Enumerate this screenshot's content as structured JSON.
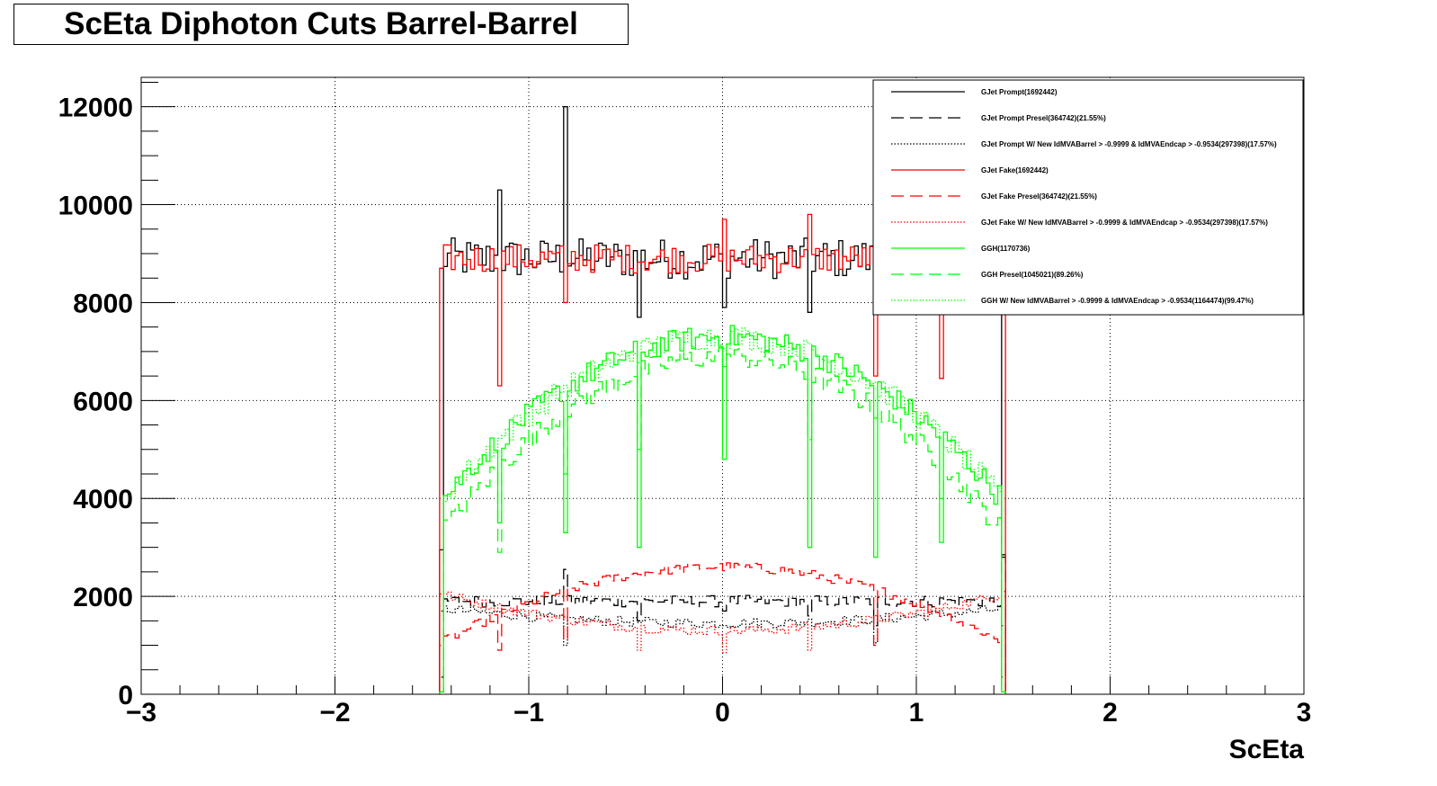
{
  "chart_data": {
    "type": "step-histogram",
    "title": "ScEta Diphoton Cuts Barrel-Barrel",
    "xlabel": "ScEta",
    "ylabel": "",
    "xlim": [
      -3,
      3
    ],
    "ylim": [
      0,
      12600
    ],
    "grid": true,
    "legend_position": "top-right",
    "x_ticks": [
      "−3",
      "−2",
      "−1",
      "0",
      "1",
      "2",
      "3"
    ],
    "y_ticks": [
      "0",
      "2000",
      "4000",
      "6000",
      "8000",
      "10000",
      "12000"
    ],
    "x_tick_values": [
      -3,
      -2,
      -1,
      0,
      1,
      2,
      3
    ],
    "y_tick_values": [
      0,
      2000,
      4000,
      6000,
      8000,
      10000,
      12000
    ],
    "bin_range": [
      -1.46,
      1.46
    ],
    "bin_count": 146,
    "colors": {
      "black": "#000000",
      "red": "#ff0000",
      "green": "#00ff00"
    },
    "series": [
      {
        "name": "GJet Prompt(1692442)",
        "color": "#000000",
        "style": "solid",
        "profile": {
          "type": "flat",
          "level": 8900,
          "amp": 420
        },
        "edges": [
          2950,
          2800
        ],
        "spikes": [
          [
            -1.15,
            10300
          ],
          [
            -0.8,
            12000
          ],
          [
            -0.44,
            7700
          ],
          [
            0,
            7900
          ],
          [
            0.44,
            7800
          ],
          [
            0.78,
            8300
          ]
        ]
      },
      {
        "name": "GJet Prompt Presel(364742)(21.55%)",
        "color": "#000000",
        "style": "dashed",
        "profile": {
          "type": "flat",
          "level": 1900,
          "amp": 120
        },
        "edges": [
          350,
          2850
        ],
        "spikes": [
          [
            -0.8,
            2550
          ],
          [
            -0.44,
            1500
          ],
          [
            0,
            1700
          ],
          [
            0.44,
            1600
          ],
          [
            0.78,
            1400
          ]
        ]
      },
      {
        "name": "GJet Prompt W/ New IdMVABarrel > -0.9999 & IdMVAEndcap > -0.9534(297398)(17.57%)",
        "color": "#000000",
        "style": "dotted",
        "profile": {
          "type": "bowl",
          "level": 1450,
          "edge": 1750,
          "amp": 100
        },
        "edges": [
          1700,
          1400
        ],
        "spikes": [
          [
            -0.8,
            1000
          ],
          [
            0.78,
            1050
          ]
        ]
      },
      {
        "name": "GJet Fake(1692442)",
        "color": "#ff0000",
        "style": "solid",
        "profile": {
          "type": "flat",
          "level": 8900,
          "amp": 300
        },
        "edges": [
          8700,
          8800
        ],
        "spikes": [
          [
            -1.15,
            6300
          ],
          [
            -0.8,
            8000
          ],
          [
            0,
            9700
          ],
          [
            0.44,
            9800
          ],
          [
            0.78,
            6500
          ],
          [
            1.12,
            6450
          ],
          [
            1.44,
            8600
          ]
        ]
      },
      {
        "name": "GJet Fake Presel(364742)(21.55%)",
        "color": "#ff0000",
        "style": "dashed",
        "profile": {
          "type": "arch",
          "peak": 2600,
          "edge": 1050,
          "amp": 100
        },
        "edges": [
          1000,
          350
        ],
        "spikes": [
          [
            -1.15,
            900
          ],
          [
            -0.8,
            1100
          ],
          [
            0.78,
            1000
          ]
        ]
      },
      {
        "name": "GJet Fake W/ New IdMVABarrel > -0.9999 & IdMVAEndcap > -0.9534(297398)(17.57%)",
        "color": "#ff0000",
        "style": "dotted",
        "profile": {
          "type": "bowl",
          "level": 1300,
          "edge": 2050,
          "amp": 100
        },
        "edges": [
          2050,
          2100
        ],
        "spikes": [
          [
            -0.44,
            900
          ],
          [
            0,
            850
          ],
          [
            0.44,
            900
          ]
        ]
      },
      {
        "name": "GGH(1170736)",
        "color": "#00ff00",
        "style": "solid",
        "profile": {
          "type": "arch",
          "peak": 7300,
          "edge": 3950,
          "amp": 250
        },
        "edges": [
          50,
          50
        ],
        "spikes": [
          [
            -1.15,
            3500
          ],
          [
            -0.8,
            3300
          ],
          [
            -0.44,
            3000
          ],
          [
            0,
            4800
          ],
          [
            0.44,
            3000
          ],
          [
            0.78,
            2800
          ],
          [
            1.12,
            3100
          ]
        ]
      },
      {
        "name": "GGH Presel(1045021)(89.26%)",
        "color": "#00ff00",
        "style": "dashed",
        "profile": {
          "type": "arch",
          "peak": 6900,
          "edge": 3300,
          "amp": 230
        },
        "edges": [
          50,
          50
        ],
        "spikes": [
          [
            -1.15,
            2900
          ],
          [
            -0.8,
            4500
          ],
          [
            -0.44,
            5000
          ],
          [
            0.44,
            5200
          ],
          [
            1.12,
            4000
          ]
        ]
      },
      {
        "name": "GGH W/ New IdMVABarrel > -0.9999 & IdMVAEndcap > -0.9534(1164474)(99.47%)",
        "color": "#00ff00",
        "style": "dotted",
        "profile": {
          "type": "arch",
          "peak": 7300,
          "edge": 3950,
          "amp": 250
        },
        "edges": [
          50,
          50
        ],
        "spikes": []
      }
    ]
  }
}
